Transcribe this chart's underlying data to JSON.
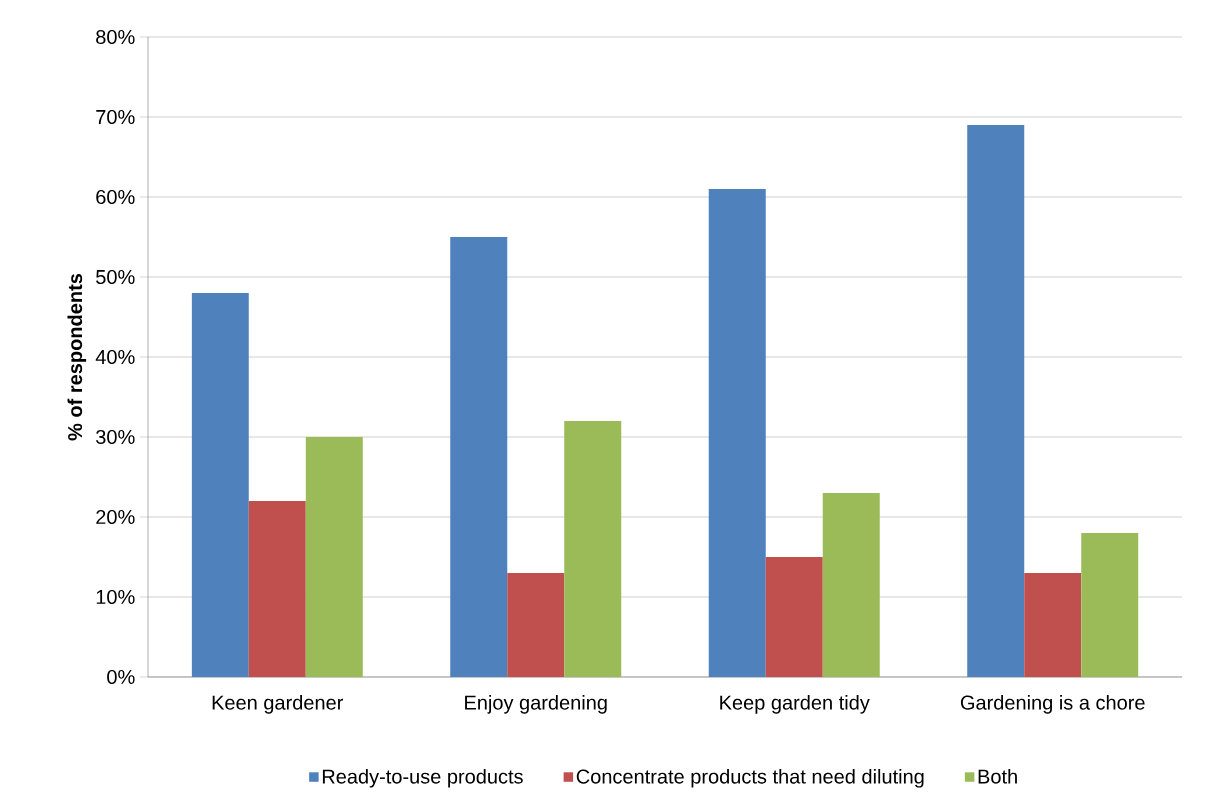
{
  "chart_data": {
    "type": "bar",
    "ylabel": "% of respondents",
    "categories": [
      "Keen gardener",
      "Enjoy gardening",
      "Keep garden tidy",
      "Gardening is a chore"
    ],
    "series": [
      {
        "name": "Ready-to-use products",
        "color": "#4f81bd",
        "values": [
          48,
          55,
          61,
          69
        ]
      },
      {
        "name": "Concentrate products that need diluting",
        "color": "#c0504d",
        "values": [
          22,
          13,
          15,
          13
        ]
      },
      {
        "name": "Both",
        "color": "#9bbb59",
        "values": [
          30,
          32,
          23,
          18
        ]
      }
    ],
    "ylim": [
      0,
      80
    ],
    "yticks": [
      {
        "value": 0,
        "label": "0%"
      },
      {
        "value": 10,
        "label": "10%"
      },
      {
        "value": 20,
        "label": "20%"
      },
      {
        "value": 30,
        "label": "30%"
      },
      {
        "value": 40,
        "label": "40%"
      },
      {
        "value": 50,
        "label": "50%"
      },
      {
        "value": 60,
        "label": "60%"
      },
      {
        "value": 70,
        "label": "70%"
      },
      {
        "value": 80,
        "label": "80%"
      }
    ],
    "grid": "y",
    "legend": "bottom"
  }
}
